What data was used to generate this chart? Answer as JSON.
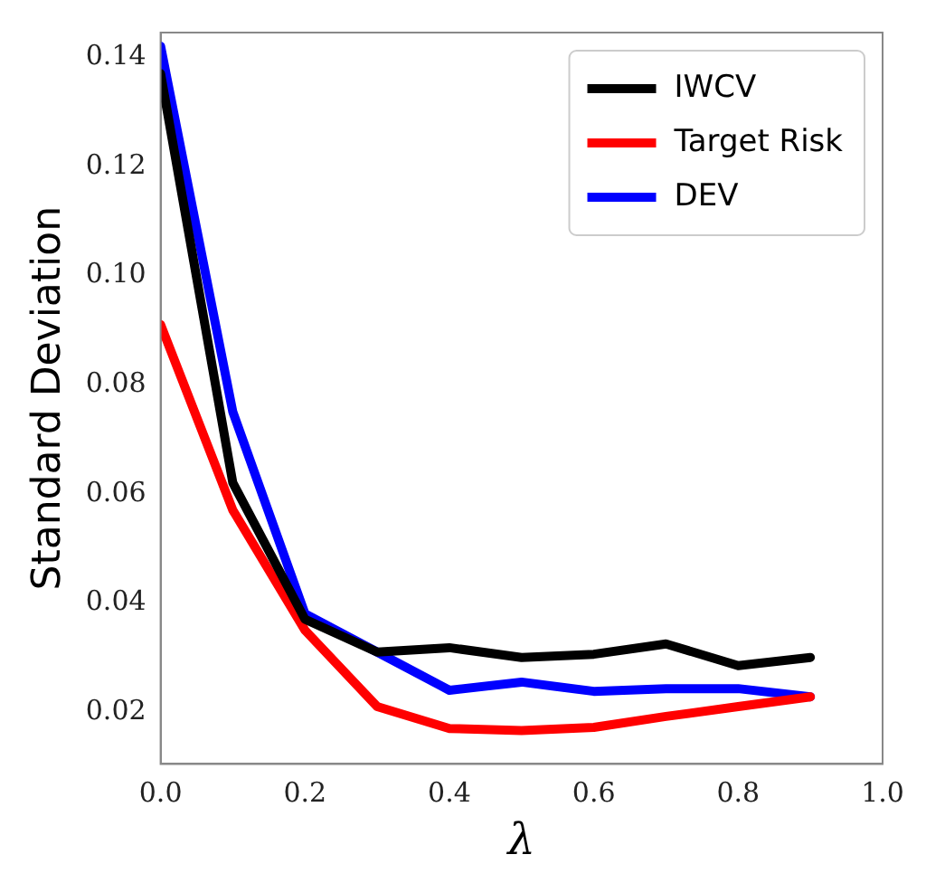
{
  "chart_data": {
    "type": "line",
    "xlabel": "λ",
    "ylabel": "Standard Deviation",
    "x": [
      0,
      0.1,
      0.2,
      0.3,
      0.4,
      0.5,
      0.6,
      0.7,
      0.8,
      0.9
    ],
    "series": [
      {
        "name": "IWCV",
        "color": "#000000",
        "values": [
          0.137,
          0.062,
          0.037,
          0.031,
          0.0318,
          0.03,
          0.0306,
          0.0325,
          0.0285,
          0.03
        ]
      },
      {
        "name": "Target Risk",
        "color": "#ff0000",
        "values": [
          0.091,
          0.057,
          0.035,
          0.021,
          0.017,
          0.0166,
          0.0172,
          0.0192,
          0.021,
          0.0228
        ]
      },
      {
        "name": "DEV",
        "color": "#0000ff",
        "values": [
          0.142,
          0.075,
          0.038,
          0.031,
          0.024,
          0.0255,
          0.0238,
          0.0243,
          0.0243,
          0.0228
        ]
      }
    ],
    "xlim": [
      0,
      1
    ],
    "xticks": [
      {
        "value": 0,
        "label": "0.0"
      },
      {
        "value": 0.2,
        "label": "0.2"
      },
      {
        "value": 0.4,
        "label": "0.4"
      },
      {
        "value": 0.6,
        "label": "0.6"
      },
      {
        "value": 0.8,
        "label": "0.8"
      },
      {
        "value": 1,
        "label": "1.0"
      }
    ],
    "ylim": [
      0.0105,
      0.1445
    ],
    "yticks": [
      {
        "value": 0.02,
        "label": "0.02"
      },
      {
        "value": 0.04,
        "label": "0.04"
      },
      {
        "value": 0.06,
        "label": "0.06"
      },
      {
        "value": 0.08,
        "label": "0.08"
      },
      {
        "value": 0.1,
        "label": "0.10"
      },
      {
        "value": 0.12,
        "label": "0.12"
      },
      {
        "value": 0.14,
        "label": "0.14"
      }
    ],
    "grid": false,
    "legend": "top right",
    "marker": "none",
    "line_style": "solid"
  }
}
